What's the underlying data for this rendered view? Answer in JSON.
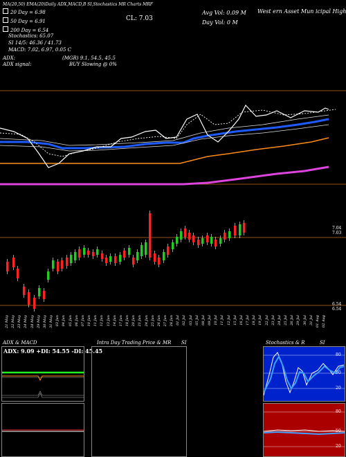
{
  "header": {
    "top_line": "MA(20,50) EMA(20)Daily ADX,MACD,B SI,Stochastics MR Charts MRF",
    "company": "West ern Asset Mun icipal High Income Fund, Inc.",
    "close": "CL: 7.03",
    "avg_vol": "Avg Vol: 0.09 M",
    "day_vol": "Day Vol: 0 M"
  },
  "indicators": [
    {
      "label": "20 Day = 6.98",
      "color": "#ffffff"
    },
    {
      "label": "50 Day = 6.91",
      "color": "#ffffff"
    },
    {
      "label": "200 Day = 6.54",
      "color": "#ffffff"
    }
  ],
  "stats": {
    "stochastics": "Stochastics: 65.07",
    "si": "SI 14/5: 46.36 / 41.73",
    "macd": "MACD: 7.02, 6.97, 0.05 C",
    "adx": "ADX:",
    "adx_value": "(MGR) 9.1, 54.5, 45.5",
    "adx_signal": "ADX signal:",
    "buy_signal": "BUY Slowing @ 0%"
  },
  "price_axis": {
    "top_a": "7.04",
    "top_b": "7.03",
    "bottom_a": "6.54",
    "bottom_b": "6.54"
  },
  "dates": [
    "21 May",
    "22 May",
    "23 May",
    "24 May",
    "28 May",
    "29 May",
    "30 May",
    "31 May",
    "03 Jun",
    "04 Jun",
    "05 Jun",
    "06 Jun",
    "07 Jun",
    "10 Jun",
    "11 Jun",
    "12 Jun",
    "13 Jun",
    "14 Jun",
    "17 Jun",
    "18 Jun",
    "20 Jun",
    "21 Jun",
    "24 Jun",
    "25 Jun",
    "26 Jun",
    "27 Jun",
    "28 Jun",
    "01 Jul",
    "02 Jul",
    "03 Jul",
    "05 Jul",
    "08 Jul",
    "09 Jul",
    "10 Jul",
    "11 Jul",
    "12 Jul",
    "15 Jul",
    "16 Jul",
    "17 Jul",
    "18 Jul",
    "19 Jul",
    "22 Jul",
    "23 Jul",
    "24 Jul",
    "25 Jul",
    "26 Jul",
    "29 Jul",
    "30 Jul",
    "31 Jul",
    "01 Aug",
    "02 Aug"
  ],
  "panels": {
    "adx_title": "ADX & MACD",
    "adx_values": "ADX: 9.09 +DI: 54.55 -DI: 45.45",
    "intraday_title": "Intra Day Trading Price & MR",
    "intraday_si": "SI",
    "stoch_title": "Stochastics & R",
    "stoch_si": "SI",
    "stoch_ticks": [
      "80",
      "50",
      "20"
    ],
    "rsi_ticks": [
      "80",
      "50",
      "20"
    ]
  },
  "colors": {
    "ema20": "#1e5bff",
    "ma200": "#ff8c1a",
    "bottom_band": "#dd44dd",
    "up_candle": "#22cc22",
    "down_candle": "#ff2222",
    "orange_line": "#cc6a1a"
  }
}
